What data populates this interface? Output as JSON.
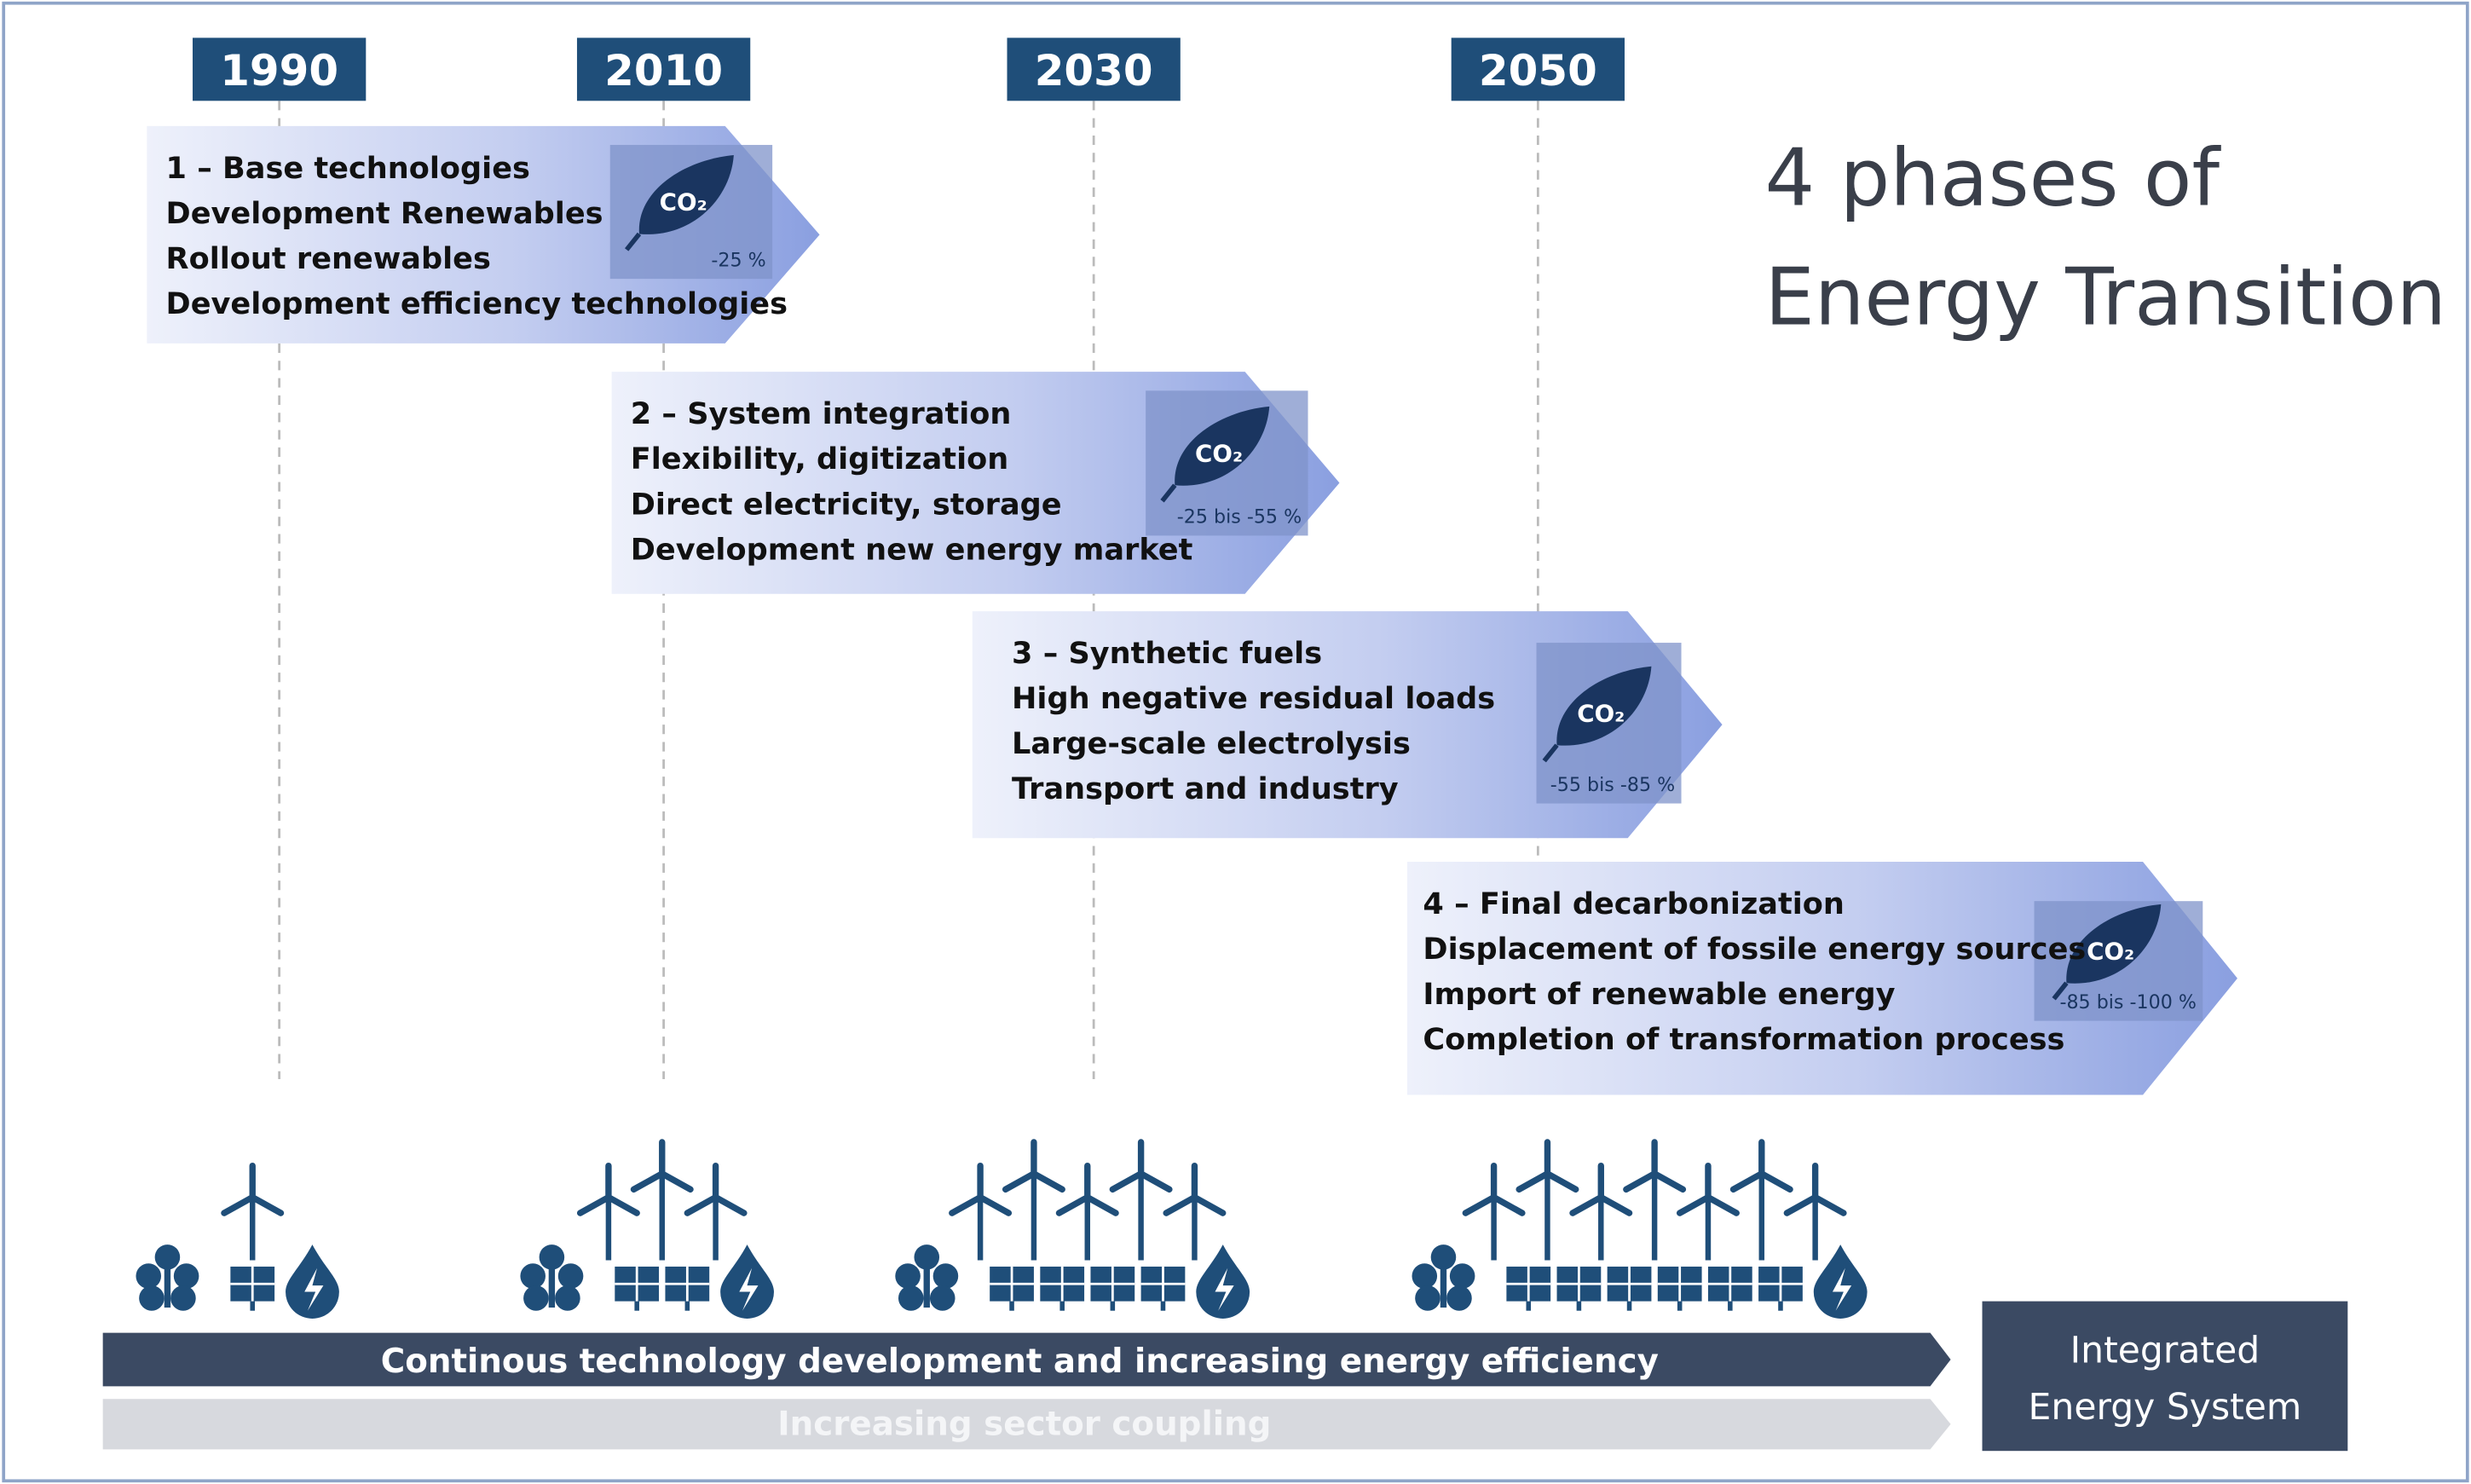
{
  "header": {
    "title_lines": [
      "4 phases of",
      "Energy Transition"
    ]
  },
  "years": [
    "1990",
    "2010",
    "2030",
    "2050"
  ],
  "co2_label": "CO₂",
  "phases": [
    {
      "title": "1 – Base technologies",
      "items": [
        "Development Renewables",
        "Rollout renewables",
        "Development efficiency technologies"
      ],
      "reduction": "-25 %"
    },
    {
      "title": "2 – System integration",
      "items": [
        "Flexibility, digitization",
        "Direct electricity, storage",
        "Development new energy market"
      ],
      "reduction": "-25 bis -55 %"
    },
    {
      "title": "3 – Synthetic fuels",
      "items": [
        "High negative residual loads",
        "Large-scale electrolysis",
        "Transport and industry"
      ],
      "reduction": "-55 bis -85 %"
    },
    {
      "title": "4 – Final decarbonization",
      "items": [
        "Displacement of fossile energy sources",
        "Import of renewable energy",
        "Completion of transformation process"
      ],
      "reduction": "-85 bis -100 %"
    }
  ],
  "bars": {
    "primary": "Continous technology development and increasing energy efficiency",
    "secondary": "Increasing sector coupling"
  },
  "result": {
    "lines": [
      "Integrated",
      "Energy System"
    ]
  }
}
